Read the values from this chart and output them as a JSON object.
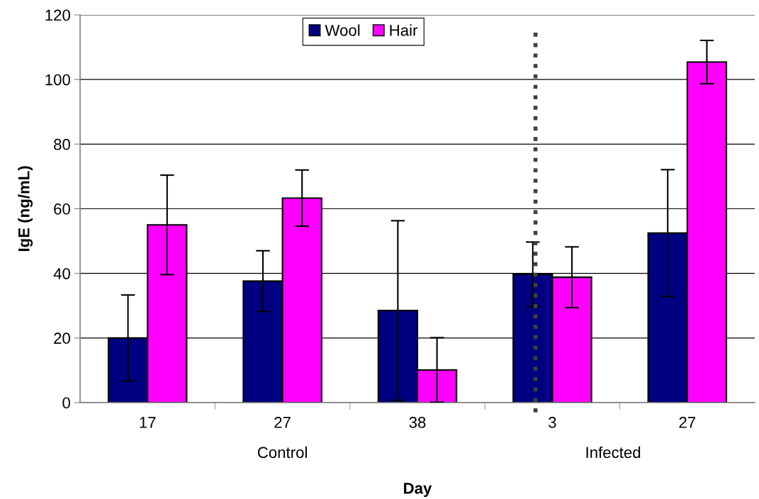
{
  "chart_data": {
    "type": "bar",
    "xlabel": "Day",
    "ylabel": "IgE (ng/mL)",
    "categories": [
      "17",
      "27",
      "38",
      "3",
      "27"
    ],
    "series": [
      {
        "name": "Wool",
        "color": "#000080",
        "values": [
          20,
          37.6,
          28.5,
          39.7,
          52.5
        ],
        "errors": [
          13.3,
          9.4,
          27.8,
          10,
          19.6
        ]
      },
      {
        "name": "Hair",
        "color": "#ff00ff",
        "values": [
          55,
          63.3,
          10.1,
          38.8,
          105.4
        ],
        "errors": [
          15.4,
          8.7,
          10,
          9.4,
          6.7
        ]
      }
    ],
    "ylim": [
      0,
      120
    ],
    "yticks": [
      0,
      20,
      40,
      60,
      80,
      100,
      120
    ],
    "grid": "y",
    "legend": "top",
    "ref_lines": [
      {
        "axis": "x",
        "value": "3",
        "color": "#404040",
        "line_style": "dotted"
      }
    ],
    "annotations": [
      "Control",
      "Infected"
    ]
  }
}
